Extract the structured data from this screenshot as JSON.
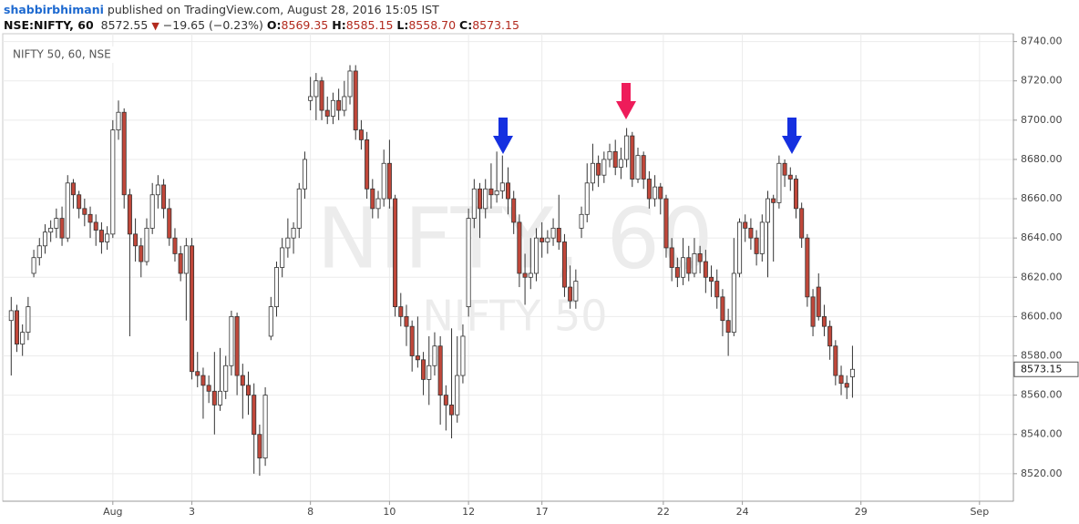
{
  "header": {
    "author": "shabbirbhimani",
    "published": "published on TradingView.com, August 28, 2016 15:05 IST",
    "symbol": "NSE:NIFTY, 60",
    "last": "8572.55",
    "change": "−19.65 (−0.23%)",
    "open": {
      "label": "O:",
      "value": "8569.35"
    },
    "high": {
      "label": "H:",
      "value": "8585.15"
    },
    "low": {
      "label": "L:",
      "value": "8558.70"
    },
    "close": {
      "label": "C:",
      "value": "8573.15"
    }
  },
  "chart_data": {
    "type": "candlestick",
    "title": "NIFTY 50, 60, NSE",
    "watermark": "NIFTY, 60",
    "watermark_sub": "NIFTY 50",
    "up_color": "#ffffff",
    "down_color": "#c0473a",
    "grid": true,
    "xlim": [
      -1.5,
      177.5
    ],
    "ylim": [
      8506,
      8744
    ],
    "xticks": [
      {
        "value": 18,
        "label": "Aug"
      },
      {
        "value": 32,
        "label": "3"
      },
      {
        "value": 53,
        "label": "8"
      },
      {
        "value": 67,
        "label": "10"
      },
      {
        "value": 81,
        "label": "12"
      },
      {
        "value": 94,
        "label": "17"
      },
      {
        "value": 115.5,
        "label": "22"
      },
      {
        "value": 129.5,
        "label": "24"
      },
      {
        "value": 150.5,
        "label": "29"
      },
      {
        "value": 171.5,
        "label": "Sep"
      }
    ],
    "yticks": [
      {
        "value": 8520,
        "label": "8520.00"
      },
      {
        "value": 8540,
        "label": "8540.00"
      },
      {
        "value": 8560,
        "label": "8560.00"
      },
      {
        "value": 8580,
        "label": "8580.00"
      },
      {
        "value": 8600,
        "label": "8600.00"
      },
      {
        "value": 8620,
        "label": "8620.00"
      },
      {
        "value": 8640,
        "label": "8640.00"
      },
      {
        "value": 8660,
        "label": "8660.00"
      },
      {
        "value": 8680,
        "label": "8680.00"
      },
      {
        "value": 8700,
        "label": "8700.00"
      },
      {
        "value": 8720,
        "label": "8720.00"
      },
      {
        "value": 8740,
        "label": "8740.00"
      }
    ],
    "ohlc": [
      [
        8598,
        8610,
        8570,
        8603
      ],
      [
        8603,
        8606,
        8582,
        8586
      ],
      [
        8586,
        8596,
        8580,
        8592
      ],
      [
        8592,
        8610,
        8588,
        8605
      ],
      [
        8622,
        8634,
        8620,
        8630
      ],
      [
        8630,
        8640,
        8626,
        8636
      ],
      [
        8636,
        8647,
        8632,
        8643
      ],
      [
        8643,
        8649,
        8638,
        8645
      ],
      [
        8645,
        8655,
        8640,
        8650
      ],
      [
        8650,
        8656,
        8636,
        8640
      ],
      [
        8640,
        8672,
        8638,
        8668
      ],
      [
        8668,
        8670,
        8655,
        8662
      ],
      [
        8662,
        8664,
        8650,
        8655
      ],
      [
        8655,
        8660,
        8646,
        8652
      ],
      [
        8652,
        8656,
        8640,
        8648
      ],
      [
        8648,
        8652,
        8636,
        8644
      ],
      [
        8644,
        8648,
        8632,
        8638
      ],
      [
        8638,
        8646,
        8634,
        8642
      ],
      [
        8642,
        8700,
        8640,
        8695
      ],
      [
        8695,
        8710,
        8690,
        8704
      ],
      [
        8704,
        8706,
        8655,
        8662
      ],
      [
        8662,
        8665,
        8590,
        8642
      ],
      [
        8642,
        8650,
        8628,
        8636
      ],
      [
        8636,
        8640,
        8620,
        8628
      ],
      [
        8628,
        8650,
        8626,
        8645
      ],
      [
        8645,
        8668,
        8642,
        8662
      ],
      [
        8662,
        8672,
        8655,
        8667
      ],
      [
        8667,
        8670,
        8650,
        8655
      ],
      [
        8655,
        8660,
        8636,
        8640
      ],
      [
        8640,
        8645,
        8628,
        8632
      ],
      [
        8632,
        8636,
        8618,
        8622
      ],
      [
        8622,
        8640,
        8598,
        8636
      ],
      [
        8636,
        8640,
        8568,
        8572
      ],
      [
        8572,
        8582,
        8564,
        8570
      ],
      [
        8570,
        8574,
        8548,
        8565
      ],
      [
        8565,
        8570,
        8556,
        8562
      ],
      [
        8562,
        8582,
        8540,
        8555
      ],
      [
        8555,
        8584,
        8552,
        8562
      ],
      [
        8562,
        8580,
        8558,
        8575
      ],
      [
        8575,
        8603,
        8570,
        8600
      ],
      [
        8600,
        8602,
        8560,
        8570
      ],
      [
        8570,
        8576,
        8548,
        8565
      ],
      [
        8565,
        8572,
        8550,
        8560
      ],
      [
        8560,
        8566,
        8520,
        8540
      ],
      [
        8540,
        8545,
        8519,
        8528
      ],
      [
        8528,
        8564,
        8524,
        8560
      ],
      [
        8590,
        8610,
        8588,
        8605
      ],
      [
        8605,
        8628,
        8600,
        8625
      ],
      [
        8625,
        8640,
        8620,
        8635
      ],
      [
        8635,
        8650,
        8630,
        8640
      ],
      [
        8640,
        8648,
        8632,
        8645
      ],
      [
        8645,
        8668,
        8640,
        8665
      ],
      [
        8665,
        8684,
        8660,
        8680
      ],
      [
        8710,
        8722,
        8705,
        8712
      ],
      [
        8712,
        8724,
        8700,
        8720
      ],
      [
        8720,
        8722,
        8700,
        8705
      ],
      [
        8705,
        8712,
        8698,
        8702
      ],
      [
        8702,
        8714,
        8698,
        8710
      ],
      [
        8710,
        8716,
        8700,
        8705
      ],
      [
        8705,
        8720,
        8702,
        8712
      ],
      [
        8712,
        8728,
        8708,
        8725
      ],
      [
        8725,
        8728,
        8690,
        8695
      ],
      [
        8695,
        8700,
        8685,
        8690
      ],
      [
        8690,
        8694,
        8660,
        8665
      ],
      [
        8665,
        8670,
        8650,
        8655
      ],
      [
        8655,
        8664,
        8650,
        8660
      ],
      [
        8660,
        8685,
        8656,
        8678
      ],
      [
        8678,
        8690,
        8655,
        8660
      ],
      [
        8660,
        8662,
        8600,
        8605
      ],
      [
        8605,
        8612,
        8595,
        8600
      ],
      [
        8600,
        8606,
        8585,
        8595
      ],
      [
        8595,
        8598,
        8572,
        8580
      ],
      [
        8580,
        8600,
        8574,
        8578
      ],
      [
        8578,
        8582,
        8560,
        8568
      ],
      [
        8568,
        8590,
        8555,
        8575
      ],
      [
        8575,
        8592,
        8570,
        8585
      ],
      [
        8585,
        8590,
        8545,
        8560
      ],
      [
        8560,
        8565,
        8542,
        8555
      ],
      [
        8555,
        8594,
        8538,
        8550
      ],
      [
        8550,
        8590,
        8546,
        8570
      ],
      [
        8570,
        8596,
        8566,
        8590
      ],
      [
        8605,
        8655,
        8600,
        8650
      ],
      [
        8650,
        8670,
        8645,
        8665
      ],
      [
        8665,
        8668,
        8640,
        8655
      ],
      [
        8655,
        8670,
        8650,
        8665
      ],
      [
        8665,
        8678,
        8655,
        8662
      ],
      [
        8662,
        8684,
        8658,
        8664
      ],
      [
        8664,
        8682,
        8660,
        8668
      ],
      [
        8668,
        8676,
        8652,
        8660
      ],
      [
        8660,
        8664,
        8642,
        8648
      ],
      [
        8648,
        8652,
        8615,
        8622
      ],
      [
        8622,
        8632,
        8606,
        8620
      ],
      [
        8620,
        8640,
        8614,
        8622
      ],
      [
        8622,
        8645,
        8618,
        8640
      ],
      [
        8640,
        8648,
        8630,
        8638
      ],
      [
        8638,
        8644,
        8632,
        8640
      ],
      [
        8640,
        8650,
        8636,
        8645
      ],
      [
        8645,
        8662,
        8634,
        8638
      ],
      [
        8638,
        8642,
        8610,
        8615
      ],
      [
        8615,
        8626,
        8604,
        8608
      ],
      [
        8608,
        8624,
        8604,
        8618
      ],
      [
        8645,
        8656,
        8640,
        8652
      ],
      [
        8652,
        8678,
        8648,
        8668
      ],
      [
        8668,
        8688,
        8664,
        8678
      ],
      [
        8678,
        8682,
        8666,
        8672
      ],
      [
        8672,
        8684,
        8668,
        8680
      ],
      [
        8680,
        8688,
        8676,
        8684
      ],
      [
        8684,
        8690,
        8672,
        8676
      ],
      [
        8676,
        8686,
        8670,
        8680
      ],
      [
        8680,
        8696,
        8676,
        8692
      ],
      [
        8692,
        8694,
        8666,
        8670
      ],
      [
        8670,
        8686,
        8668,
        8682
      ],
      [
        8682,
        8684,
        8665,
        8670
      ],
      [
        8670,
        8674,
        8655,
        8660
      ],
      [
        8660,
        8672,
        8656,
        8666
      ],
      [
        8666,
        8668,
        8652,
        8660
      ],
      [
        8660,
        8662,
        8630,
        8635
      ],
      [
        8635,
        8640,
        8618,
        8625
      ],
      [
        8625,
        8630,
        8615,
        8620
      ],
      [
        8620,
        8640,
        8616,
        8630
      ],
      [
        8630,
        8636,
        8618,
        8622
      ],
      [
        8622,
        8640,
        8620,
        8632
      ],
      [
        8632,
        8636,
        8622,
        8628
      ],
      [
        8628,
        8634,
        8612,
        8620
      ],
      [
        8620,
        8626,
        8610,
        8618
      ],
      [
        8618,
        8624,
        8604,
        8610
      ],
      [
        8610,
        8614,
        8590,
        8598
      ],
      [
        8598,
        8604,
        8580,
        8592
      ],
      [
        8592,
        8640,
        8590,
        8622
      ],
      [
        8622,
        8650,
        8620,
        8648
      ],
      [
        8648,
        8652,
        8638,
        8645
      ],
      [
        8645,
        8650,
        8634,
        8640
      ],
      [
        8640,
        8644,
        8626,
        8632
      ],
      [
        8632,
        8652,
        8628,
        8648
      ],
      [
        8648,
        8664,
        8620,
        8660
      ],
      [
        8660,
        8662,
        8628,
        8658
      ],
      [
        8658,
        8682,
        8655,
        8678
      ],
      [
        8678,
        8680,
        8666,
        8672
      ],
      [
        8672,
        8676,
        8664,
        8670
      ],
      [
        8670,
        8672,
        8650,
        8655
      ],
      [
        8655,
        8658,
        8635,
        8640
      ],
      [
        8640,
        8642,
        8605,
        8610
      ],
      [
        8610,
        8614,
        8590,
        8595
      ],
      [
        8615,
        8622,
        8598,
        8600
      ],
      [
        8600,
        8606,
        8590,
        8595
      ],
      [
        8595,
        8598,
        8578,
        8585
      ],
      [
        8585,
        8588,
        8565,
        8570
      ],
      [
        8570,
        8575,
        8560,
        8566
      ],
      [
        8566,
        8570,
        8558,
        8564
      ],
      [
        8569.35,
        8585.15,
        8558.7,
        8573.15
      ]
    ]
  }
}
